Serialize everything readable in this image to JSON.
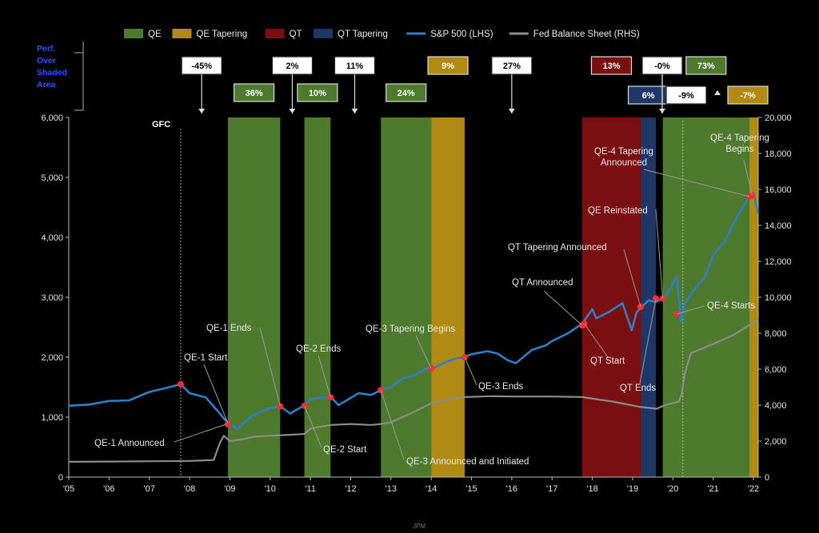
{
  "chart_data": {
    "type": "line",
    "title": "",
    "xlabel": "",
    "ylabel": "",
    "ylabel_right": "",
    "x_ticks": [
      "'05",
      "'06",
      "'07",
      "'08",
      "'09",
      "'10",
      "'11",
      "'12",
      "'13",
      "'14",
      "'15",
      "'16",
      "'17",
      "'18",
      "'19",
      "'20",
      "'21",
      "'22"
    ],
    "y_left": {
      "lim": [
        0,
        6000
      ],
      "ticks": [
        "0",
        "1,000",
        "2,000",
        "3,000",
        "4,000",
        "5,000",
        "6,000"
      ]
    },
    "y_right": {
      "lim": [
        0,
        20000
      ],
      "ticks": [
        "0",
        "2,000",
        "4,000",
        "6,000",
        "8,000",
        "10,000",
        "12,000",
        "14,000",
        "16,000",
        "18,000",
        "20,000"
      ]
    },
    "grid": false,
    "legend_position": "top",
    "legend": [
      {
        "label": "QE",
        "color": "#4e7a2e",
        "kind": "patch"
      },
      {
        "label": "QE Tapering",
        "color": "#b08a12",
        "kind": "patch"
      },
      {
        "label": "QT",
        "color": "#7a0f0f",
        "kind": "patch"
      },
      {
        "label": "QT Tapering",
        "color": "#1e3766",
        "kind": "patch"
      },
      {
        "label": "S&P 500 (LHS)",
        "color": "#2f7fc6",
        "kind": "line"
      },
      {
        "label": "Fed Balance Sheet (RHS)",
        "color": "#8c8c8c",
        "kind": "line"
      }
    ],
    "perf_label": "Perf. Over Shaded Area",
    "gfc_label": "GFC",
    "gfc_x": 2007.78,
    "covid_x": 2020.25,
    "shaded_regions": [
      {
        "type": "QE",
        "start": 2008.95,
        "end": 2010.25,
        "perf": "36%"
      },
      {
        "type": "QE",
        "start": 2010.85,
        "end": 2011.5,
        "perf": "10%"
      },
      {
        "type": "QE",
        "start": 2012.75,
        "end": 2014.0,
        "perf": "24%"
      },
      {
        "type": "QE Tapering",
        "start": 2014.0,
        "end": 2014.83,
        "perf": "9%"
      },
      {
        "type": "QT",
        "start": 2017.75,
        "end": 2019.2,
        "perf": "13%"
      },
      {
        "type": "QT Tapering",
        "start": 2019.2,
        "end": 2019.58,
        "perf": "6%"
      },
      {
        "type": "QE",
        "start": 2019.75,
        "end": 2021.9,
        "perf": "73%"
      },
      {
        "type": "QE Tapering",
        "start": 2021.9,
        "end": 2022.12,
        "perf": "-7%"
      }
    ],
    "unshaded_perf": [
      {
        "x": 2008.3,
        "perf": "-45%"
      },
      {
        "x": 2010.55,
        "perf": "2%"
      },
      {
        "x": 2012.1,
        "perf": "11%"
      },
      {
        "x": 2016.0,
        "perf": "27%"
      },
      {
        "x": 2019.68,
        "perf": "-0%"
      },
      {
        "x": 2019.68,
        "perf": "-9%"
      }
    ],
    "series": [
      {
        "name": "S&P 500 (LHS)",
        "axis": "left",
        "x": [
          2005.0,
          2005.5,
          2006.0,
          2006.5,
          2007.0,
          2007.5,
          2007.78,
          2008.0,
          2008.4,
          2008.7,
          2008.95,
          2009.2,
          2009.5,
          2009.8,
          2010.0,
          2010.25,
          2010.5,
          2010.6,
          2010.85,
          2011.0,
          2011.3,
          2011.5,
          2011.7,
          2011.9,
          2012.2,
          2012.5,
          2012.75,
          2013.0,
          2013.3,
          2013.6,
          2013.9,
          2014.0,
          2014.3,
          2014.6,
          2014.83,
          2015.0,
          2015.4,
          2015.65,
          2015.9,
          2016.1,
          2016.5,
          2016.85,
          2017.0,
          2017.4,
          2017.75,
          2018.0,
          2018.1,
          2018.4,
          2018.75,
          2018.98,
          2019.1,
          2019.2,
          2019.4,
          2019.58,
          2019.75,
          2019.9,
          2020.1,
          2020.2,
          2020.3,
          2020.5,
          2020.8,
          2021.0,
          2021.3,
          2021.6,
          2021.9,
          2022.0,
          2022.12
        ],
        "y": [
          1190,
          1210,
          1270,
          1280,
          1420,
          1500,
          1550,
          1400,
          1330,
          1100,
          900,
          800,
          1000,
          1100,
          1150,
          1180,
          1060,
          1100,
          1200,
          1300,
          1330,
          1340,
          1200,
          1280,
          1400,
          1370,
          1450,
          1500,
          1650,
          1700,
          1820,
          1800,
          1900,
          1980,
          2000,
          2050,
          2100,
          2060,
          1950,
          1900,
          2120,
          2200,
          2270,
          2400,
          2560,
          2800,
          2650,
          2750,
          2900,
          2450,
          2750,
          2820,
          2950,
          2920,
          2980,
          3100,
          3350,
          2600,
          2900,
          3100,
          3350,
          3700,
          3950,
          4350,
          4680,
          4750,
          4400
        ]
      },
      {
        "name": "Fed Balance Sheet (RHS)",
        "axis": "right",
        "x": [
          2005.0,
          2006.0,
          2007.0,
          2008.0,
          2008.6,
          2008.75,
          2008.85,
          2009.0,
          2009.3,
          2009.6,
          2010.0,
          2010.5,
          2010.85,
          2011.0,
          2011.5,
          2012.0,
          2012.5,
          2012.75,
          2013.0,
          2013.5,
          2014.0,
          2014.5,
          2014.83,
          2015.5,
          2016.0,
          2017.0,
          2017.75,
          2018.5,
          2019.2,
          2019.6,
          2019.8,
          2020.15,
          2020.22,
          2020.3,
          2020.45,
          2021.0,
          2021.5,
          2022.0,
          2022.12
        ],
        "y": [
          850,
          860,
          880,
          900,
          950,
          1900,
          2300,
          2000,
          2100,
          2250,
          2300,
          2350,
          2400,
          2700,
          2900,
          2950,
          2900,
          2950,
          3050,
          3550,
          4100,
          4350,
          4450,
          4500,
          4480,
          4480,
          4450,
          4200,
          3900,
          3800,
          4000,
          4200,
          4600,
          5800,
          6900,
          7400,
          7900,
          8600,
          8800
        ]
      }
    ],
    "markers_sp500": [
      {
        "x": 2007.78,
        "y": 1550
      },
      {
        "x": 2008.95,
        "y": 880
      },
      {
        "x": 2010.25,
        "y": 1180
      },
      {
        "x": 2010.85,
        "y": 1190
      },
      {
        "x": 2011.5,
        "y": 1330
      },
      {
        "x": 2012.75,
        "y": 1450
      },
      {
        "x": 2014.0,
        "y": 1810
      },
      {
        "x": 2014.83,
        "y": 2000
      },
      {
        "x": 2017.75,
        "y": 2530
      },
      {
        "x": 2017.8,
        "y": 2560
      },
      {
        "x": 2019.2,
        "y": 2840
      },
      {
        "x": 2019.58,
        "y": 2980
      },
      {
        "x": 2019.75,
        "y": 2980
      },
      {
        "x": 2020.1,
        "y": 2720
      },
      {
        "x": 2021.9,
        "y": 4680
      },
      {
        "x": 2021.97,
        "y": 4700
      }
    ],
    "annotations": [
      {
        "text": "QE-1 Announced",
        "x": 2008.9,
        "y": 880
      },
      {
        "text": "QE-1 Start",
        "x": 2008.95,
        "y": 900
      },
      {
        "text": "QE-1 Ends",
        "x": 2010.25,
        "y": 1180
      },
      {
        "text": "QE-2 Ends",
        "x": 2011.5,
        "y": 1330
      },
      {
        "text": "QE-2 Start",
        "x": 2010.85,
        "y": 1190
      },
      {
        "text": "QE-3 Tapering Begins",
        "x": 2014.0,
        "y": 1810
      },
      {
        "text": "QE-3 Ends",
        "x": 2014.83,
        "y": 2000
      },
      {
        "text": "QE-3 Announced and Initiated",
        "x": 2012.75,
        "y": 1450
      },
      {
        "text": "QT Announced",
        "x": 2017.75,
        "y": 2530
      },
      {
        "text": "QT Start",
        "x": 2017.8,
        "y": 2560
      },
      {
        "text": "QT Tapering Announced",
        "x": 2019.2,
        "y": 2840
      },
      {
        "text": "QT Ends",
        "x": 2019.58,
        "y": 2980
      },
      {
        "text": "QE Reinstated",
        "x": 2019.75,
        "y": 2980
      },
      {
        "text": "QE-4 Starts",
        "x": 2020.1,
        "y": 2720
      },
      {
        "text": "QE-4 Tapering Announced",
        "x": 2021.9,
        "y": 4680
      },
      {
        "text": "QE-4 Tapering Begins",
        "x": 2021.97,
        "y": 4700
      }
    ],
    "footer": "JPM"
  }
}
